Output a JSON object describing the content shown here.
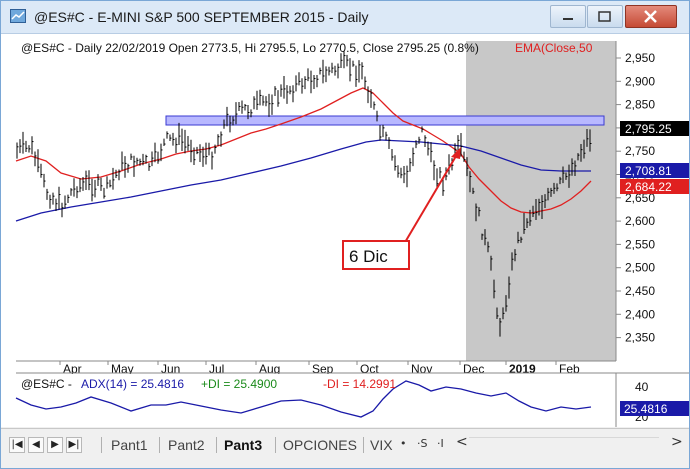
{
  "window": {
    "title": "@ES#C - E-MINI S&P 500 SEPTEMBER 2015 - Daily",
    "min_icon": "minimize-icon",
    "max_icon": "maximize-icon",
    "close_icon": "close-icon"
  },
  "price_pane": {
    "header": "@ES#C - Daily 22/02/2019 Open 2773.5, Hi 2795.5, Lo 2770.5, Close 2795.25 (0.8%)",
    "ema_label": "EMA(Close,50",
    "annotation": "6 Dic",
    "last_price_tag": "2,795.25",
    "blue_tag": "2,708.81",
    "red_tag": "2,684.22",
    "y_ticks": [
      "2,950",
      "2,900",
      "2,850",
      "2,800",
      "2,750",
      "2,700",
      "2,650",
      "2,600",
      "2,550",
      "2,500",
      "2,450",
      "2,400",
      "2,350"
    ],
    "x_labels": [
      "Apr",
      "May",
      "Jun",
      "Jul",
      "Aug",
      "Sep",
      "Oct",
      "Nov",
      "Dec",
      "2019",
      "Feb"
    ],
    "colors": {
      "bars": "#000000",
      "ema": "#e02020",
      "ma_blue": "#1a1aa8",
      "band": "#b8b8ff",
      "shade": "#c8c8c8",
      "arrow": "#e02020"
    }
  },
  "adx_pane": {
    "header_symbol": "@ES#C - ",
    "adx_label": "ADX(14) = 25.4816",
    "pdi_label": "+DI = 25.4900",
    "mdi_label": "-DI = 14.2991",
    "y_ticks": [
      "40",
      "20"
    ],
    "value_tag": "25.4816",
    "colors": {
      "adx": "#1a1aa8",
      "pdi": "#1a8a1a",
      "mdi": "#e02020"
    }
  },
  "tabs": {
    "nav_first": "first-icon",
    "nav_prev": "prev-icon",
    "nav_next": "next-icon",
    "nav_last": "last-icon",
    "items": [
      {
        "label": "Pant1"
      },
      {
        "label": "Pant2"
      },
      {
        "label": "Pant3"
      },
      {
        "label": "OPCIONES"
      },
      {
        "label": "VIX"
      }
    ],
    "ctl_dot": "•",
    "ctl_s": "·S",
    "ctl_i": "·I",
    "scroll_left": "<",
    "scroll_right": ">"
  }
}
